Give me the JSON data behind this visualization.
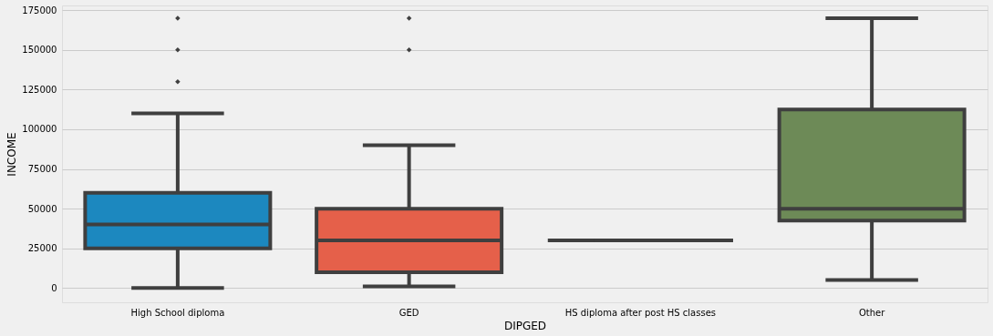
{
  "chart_data": {
    "type": "box",
    "xlabel": "DIPGED",
    "ylabel": "INCOME",
    "categories": [
      "High School diploma",
      "GED",
      "HS diploma after post HS classes",
      "Other"
    ],
    "colors": [
      "#1c88bf",
      "#e5604a",
      "#3f3f3f",
      "#6d8a57"
    ],
    "boxes": [
      {
        "low": 0,
        "q1": 25000,
        "median": 40000,
        "q3": 60000,
        "high": 110000,
        "outliers": [
          130000,
          150000,
          170000
        ]
      },
      {
        "low": 1000,
        "q1": 10000,
        "median": 30000,
        "q3": 50000,
        "high": 90000,
        "outliers": [
          150000,
          170000
        ]
      },
      {
        "low": 30000,
        "q1": 30000,
        "median": 30000,
        "q3": 30000,
        "high": 30000
      },
      {
        "low": 5000,
        "q1": 42500,
        "median": 50000,
        "q3": 112500,
        "high": 170000
      }
    ],
    "ylim": [
      -9000,
      178000
    ],
    "yticks": [
      0,
      25000,
      50000,
      75000,
      100000,
      125000,
      150000,
      175000
    ],
    "grid": "y",
    "marker": "diamond"
  }
}
